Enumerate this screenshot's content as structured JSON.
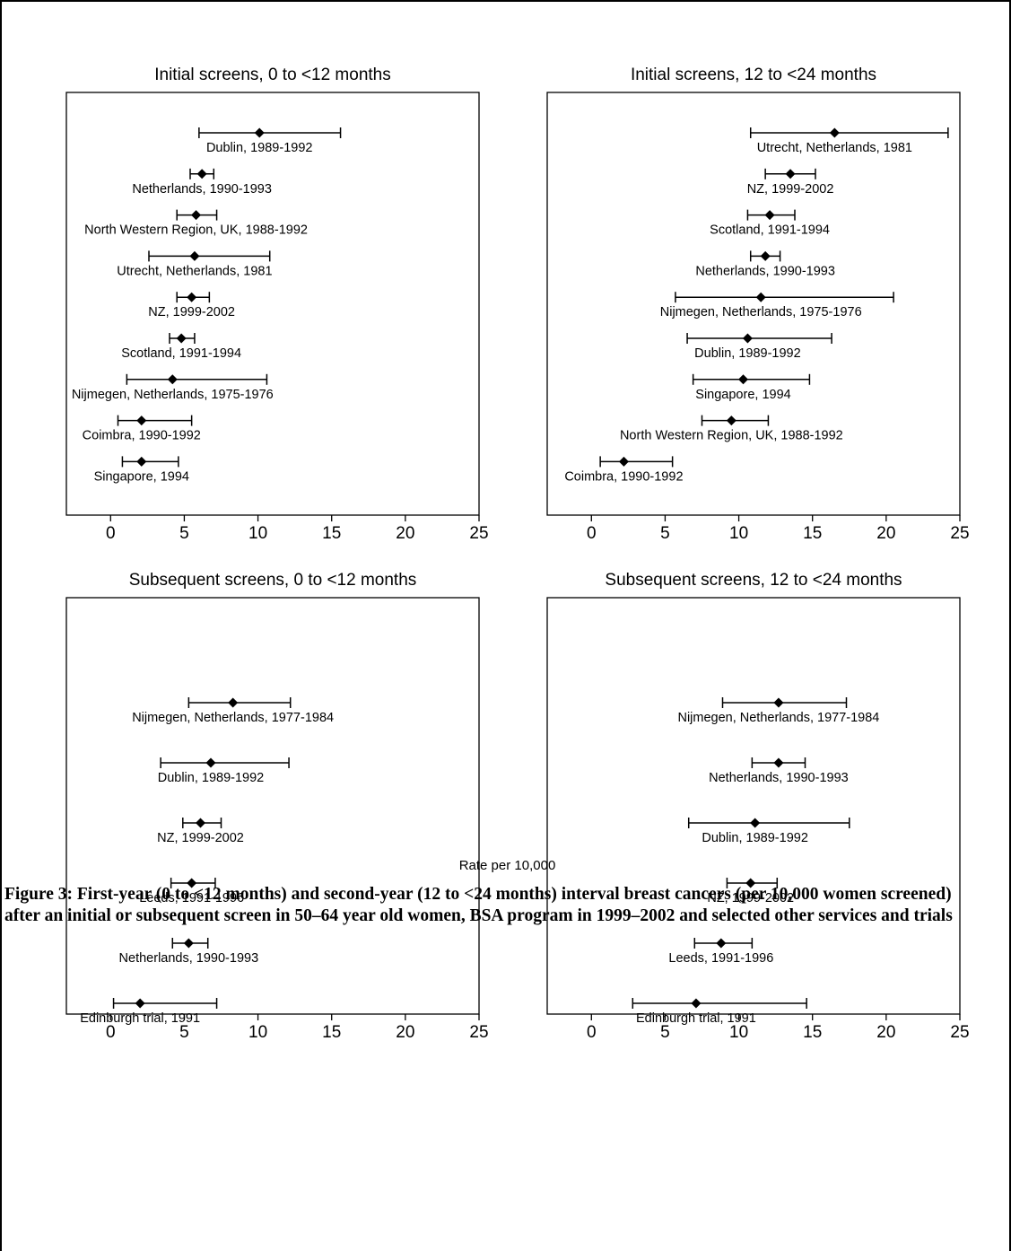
{
  "axis_label": "Rate per 10,000",
  "caption": "Figure 3: First-year (0 to <12 months) and second-year (12 to <24 months) interval breast cancers (per 10,000 women screened) after an initial or subsequent screen in 50–64 year old women, BSA program in 1999–2002 and selected other services and trials",
  "chart_data": [
    {
      "type": "forest",
      "title": "Initial screens, 0 to <12 months",
      "xlim": [
        -3,
        25
      ],
      "xticks": [
        0,
        5,
        10,
        15,
        20,
        25
      ],
      "grid": false,
      "points": [
        {
          "label": "Dublin, 1989-1992",
          "value": 10.1,
          "low": 6.0,
          "high": 15.6
        },
        {
          "label": "Netherlands, 1990-1993",
          "value": 6.2,
          "low": 5.4,
          "high": 7.0
        },
        {
          "label": "North Western Region, UK, 1988-1992",
          "value": 5.8,
          "low": 4.5,
          "high": 7.2
        },
        {
          "label": "Utrecht, Netherlands, 1981",
          "value": 5.7,
          "low": 2.6,
          "high": 10.8
        },
        {
          "label": "NZ, 1999-2002",
          "value": 5.5,
          "low": 4.5,
          "high": 6.7
        },
        {
          "label": "Scotland, 1991-1994",
          "value": 4.8,
          "low": 4.0,
          "high": 5.7
        },
        {
          "label": "Nijmegen, Netherlands, 1975-1976",
          "value": 4.2,
          "low": 1.1,
          "high": 10.6
        },
        {
          "label": "Coimbra, 1990-1992",
          "value": 2.1,
          "low": 0.5,
          "high": 5.5
        },
        {
          "label": "Singapore, 1994",
          "value": 2.1,
          "low": 0.8,
          "high": 4.6
        }
      ]
    },
    {
      "type": "forest",
      "title": "Initial screens, 12 to <24 months",
      "xlim": [
        -3,
        25
      ],
      "xticks": [
        0,
        5,
        10,
        15,
        20,
        25
      ],
      "grid": false,
      "points": [
        {
          "label": "Utrecht, Netherlands, 1981",
          "value": 16.5,
          "low": 10.8,
          "high": 24.2
        },
        {
          "label": "NZ, 1999-2002",
          "value": 13.5,
          "low": 11.8,
          "high": 15.2
        },
        {
          "label": "Scotland, 1991-1994",
          "value": 12.1,
          "low": 10.6,
          "high": 13.8
        },
        {
          "label": "Netherlands, 1990-1993",
          "value": 11.8,
          "low": 10.8,
          "high": 12.8
        },
        {
          "label": "Nijmegen, Netherlands, 1975-1976",
          "value": 11.5,
          "low": 5.7,
          "high": 20.5
        },
        {
          "label": "Dublin, 1989-1992",
          "value": 10.6,
          "low": 6.5,
          "high": 16.3
        },
        {
          "label": "Singapore, 1994",
          "value": 10.3,
          "low": 6.9,
          "high": 14.8
        },
        {
          "label": "North Western Region, UK, 1988-1992",
          "value": 9.5,
          "low": 7.5,
          "high": 12.0
        },
        {
          "label": "Coimbra, 1990-1992",
          "value": 2.2,
          "low": 0.6,
          "high": 5.5
        }
      ]
    },
    {
      "type": "forest",
      "title": "Subsequent screens, 0 to <12 months",
      "xlim": [
        -3,
        25
      ],
      "xticks": [
        0,
        5,
        10,
        15,
        20,
        25
      ],
      "grid": false,
      "points": [
        {
          "label": "Nijmegen, Netherlands, 1977-1984",
          "value": 8.3,
          "low": 5.3,
          "high": 12.2
        },
        {
          "label": "Dublin, 1989-1992",
          "value": 6.8,
          "low": 3.4,
          "high": 12.1
        },
        {
          "label": "NZ, 1999-2002",
          "value": 6.1,
          "low": 4.9,
          "high": 7.5
        },
        {
          "label": "Leeds, 1991-1996",
          "value": 5.5,
          "low": 4.1,
          "high": 7.1
        },
        {
          "label": "Netherlands, 1990-1993",
          "value": 5.3,
          "low": 4.2,
          "high": 6.6
        },
        {
          "label": "Edinburgh trial, 1991",
          "value": 2.0,
          "low": 0.2,
          "high": 7.2
        }
      ]
    },
    {
      "type": "forest",
      "title": "Subsequent screens, 12 to <24 months",
      "xlim": [
        -3,
        25
      ],
      "xticks": [
        0,
        5,
        10,
        15,
        20,
        25
      ],
      "grid": false,
      "points": [
        {
          "label": "Nijmegen, Netherlands, 1977-1984",
          "value": 12.7,
          "low": 8.9,
          "high": 17.3
        },
        {
          "label": "Netherlands, 1990-1993",
          "value": 12.7,
          "low": 10.9,
          "high": 14.5
        },
        {
          "label": "Dublin, 1989-1992",
          "value": 11.1,
          "low": 6.6,
          "high": 17.5
        },
        {
          "label": "NZ, 1999-2002",
          "value": 10.8,
          "low": 9.2,
          "high": 12.6
        },
        {
          "label": "Leeds, 1991-1996",
          "value": 8.8,
          "low": 7.0,
          "high": 10.9
        },
        {
          "label": "Edinburgh trial, 1991",
          "value": 7.1,
          "low": 2.8,
          "high": 14.6
        }
      ]
    }
  ]
}
